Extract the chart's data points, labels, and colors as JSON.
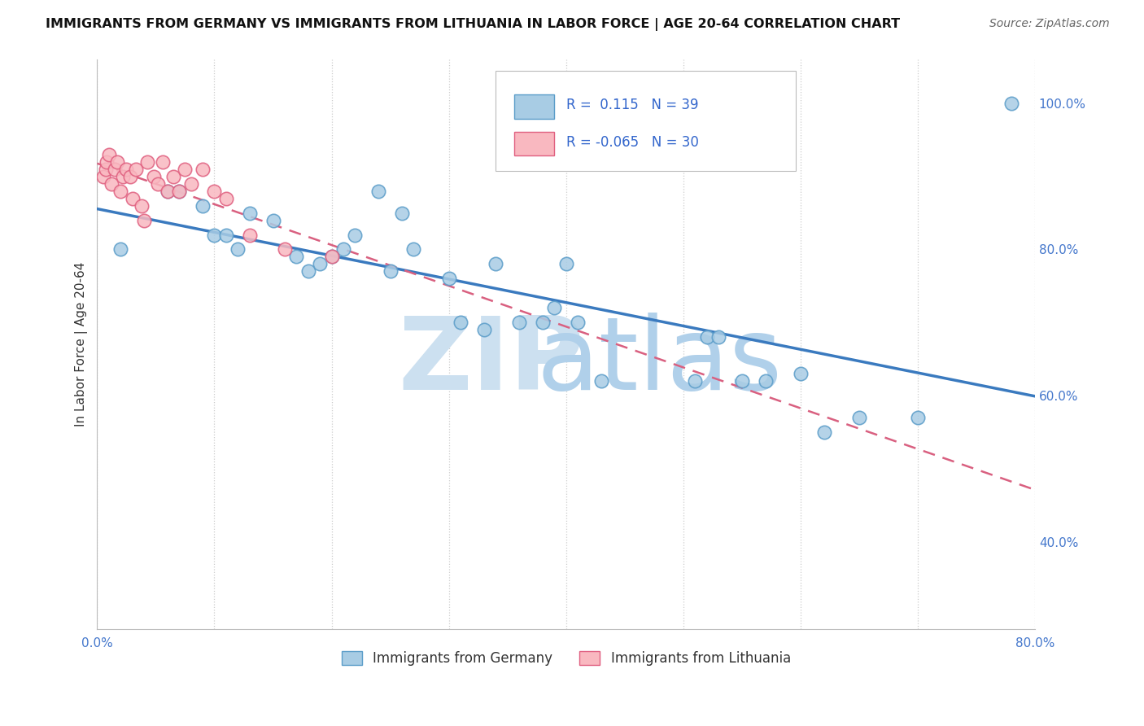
{
  "title": "IMMIGRANTS FROM GERMANY VS IMMIGRANTS FROM LITHUANIA IN LABOR FORCE | AGE 20-64 CORRELATION CHART",
  "source": "Source: ZipAtlas.com",
  "ylabel": "In Labor Force | Age 20-64",
  "xlim": [
    0.0,
    0.8
  ],
  "ylim": [
    0.28,
    1.06
  ],
  "y_ticks_right": [
    0.4,
    0.6,
    0.8,
    1.0
  ],
  "y_tick_labels_right": [
    "40.0%",
    "60.0%",
    "80.0%",
    "100.0%"
  ],
  "germany_R": 0.115,
  "germany_N": 39,
  "lithuania_R": -0.065,
  "lithuania_N": 30,
  "germany_color": "#a8cce4",
  "germany_edge_color": "#5b9dc9",
  "lithuania_color": "#f9b8c0",
  "lithuania_edge_color": "#e06080",
  "germany_line_color": "#3a7abf",
  "lithuania_line_color": "#d96080",
  "germany_x": [
    0.02,
    0.06,
    0.07,
    0.09,
    0.1,
    0.11,
    0.12,
    0.13,
    0.15,
    0.17,
    0.18,
    0.19,
    0.2,
    0.21,
    0.22,
    0.24,
    0.25,
    0.26,
    0.27,
    0.3,
    0.31,
    0.33,
    0.34,
    0.36,
    0.38,
    0.39,
    0.4,
    0.41,
    0.43,
    0.51,
    0.52,
    0.53,
    0.55,
    0.57,
    0.6,
    0.62,
    0.65,
    0.7,
    0.78
  ],
  "germany_y": [
    0.8,
    0.88,
    0.88,
    0.86,
    0.82,
    0.82,
    0.8,
    0.85,
    0.84,
    0.79,
    0.77,
    0.78,
    0.79,
    0.8,
    0.82,
    0.88,
    0.77,
    0.85,
    0.8,
    0.76,
    0.7,
    0.69,
    0.78,
    0.7,
    0.7,
    0.72,
    0.78,
    0.7,
    0.62,
    0.62,
    0.68,
    0.68,
    0.62,
    0.62,
    0.63,
    0.55,
    0.57,
    0.57,
    1.0
  ],
  "lithuania_x": [
    0.005,
    0.007,
    0.008,
    0.01,
    0.012,
    0.015,
    0.017,
    0.02,
    0.022,
    0.025,
    0.028,
    0.03,
    0.033,
    0.038,
    0.04,
    0.043,
    0.048,
    0.052,
    0.056,
    0.06,
    0.065,
    0.07,
    0.075,
    0.08,
    0.09,
    0.1,
    0.11,
    0.13,
    0.16,
    0.2
  ],
  "lithuania_y": [
    0.9,
    0.91,
    0.92,
    0.93,
    0.89,
    0.91,
    0.92,
    0.88,
    0.9,
    0.91,
    0.9,
    0.87,
    0.91,
    0.86,
    0.84,
    0.92,
    0.9,
    0.89,
    0.92,
    0.88,
    0.9,
    0.88,
    0.91,
    0.89,
    0.91,
    0.88,
    0.87,
    0.82,
    0.8,
    0.79
  ],
  "watermark_zip_color": "#cce0f0",
  "watermark_atlas_color": "#b0d0ea"
}
